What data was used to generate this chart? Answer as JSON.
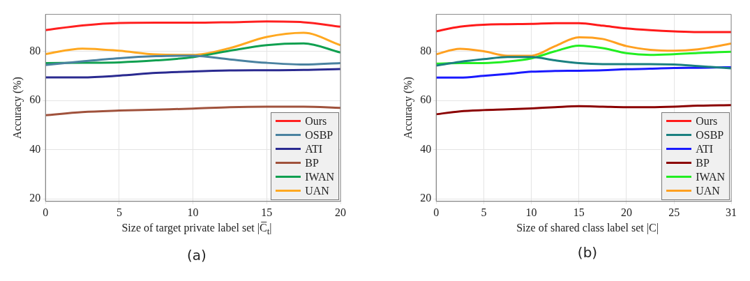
{
  "chart_data": [
    {
      "type": "line",
      "title": "(a)",
      "xlabel": "Size of target private label set |C̅$_{t}$|",
      "ylabel": "Accuracy (%)",
      "x": [
        0,
        2.5,
        5,
        7.5,
        10,
        12.5,
        15,
        17.5,
        20
      ],
      "xlim": [
        0,
        20
      ],
      "xticks": [
        0,
        5,
        10,
        15,
        20
      ],
      "ylim": [
        19,
        95
      ],
      "yticks": [
        20,
        40,
        60,
        80
      ],
      "grid": true,
      "legend": "bottom right",
      "marker": "none",
      "line_style": "solid",
      "series": [
        {
          "name": "Ours",
          "color": "#ff2020",
          "values": [
            88.6,
            90.5,
            91.5,
            91.6,
            91.6,
            91.8,
            92.1,
            91.8,
            90.0
          ]
        },
        {
          "name": "OSBP",
          "color": "#4a82a0",
          "values": [
            74.4,
            75.9,
            77.2,
            78.0,
            78.2,
            76.7,
            75.3,
            74.6,
            75.2
          ]
        },
        {
          "name": "ATI",
          "color": "#2a2a90",
          "values": [
            69.4,
            69.4,
            70.1,
            71.2,
            71.8,
            72.2,
            72.3,
            72.4,
            72.8
          ]
        },
        {
          "name": "BP",
          "color": "#a0523c",
          "values": [
            54.0,
            55.3,
            55.9,
            56.3,
            56.7,
            57.3,
            57.5,
            57.5,
            57.0
          ]
        },
        {
          "name": "IWAN",
          "color": "#10a050",
          "values": [
            75.2,
            75.3,
            75.5,
            76.3,
            77.6,
            80.2,
            82.5,
            83.2,
            79.5
          ]
        },
        {
          "name": "UAN",
          "color": "#ffa820",
          "values": [
            78.9,
            81.1,
            80.2,
            78.7,
            78.5,
            81.3,
            85.8,
            87.5,
            82.5
          ]
        }
      ]
    },
    {
      "type": "line",
      "title": "(b)",
      "xlabel": "Size of shared class label set |C|",
      "ylabel": "Accuracy (%)",
      "x": [
        0,
        2.5,
        5,
        7.5,
        10,
        12.5,
        15,
        17.5,
        20,
        22.5,
        25,
        27.5,
        31
      ],
      "xlim": [
        0,
        31
      ],
      "xticks": [
        0,
        5,
        10,
        15,
        20,
        25,
        31
      ],
      "ylim": [
        19,
        95
      ],
      "yticks": [
        20,
        40,
        60,
        80
      ],
      "grid": true,
      "legend": "bottom right",
      "marker": "none",
      "line_style": "solid",
      "series": [
        {
          "name": "Ours",
          "color": "#ff1a1a",
          "values": [
            88.1,
            90.0,
            90.8,
            91.0,
            91.1,
            91.4,
            91.4,
            90.4,
            89.3,
            88.6,
            88.1,
            87.8,
            87.8
          ]
        },
        {
          "name": "OSBP",
          "color": "#1a8080",
          "values": [
            74.2,
            75.7,
            76.8,
            77.7,
            77.7,
            76.3,
            75.2,
            74.8,
            74.8,
            74.8,
            74.6,
            74.0,
            73.1
          ]
        },
        {
          "name": "ATI",
          "color": "#1a1aff",
          "values": [
            69.3,
            69.3,
            70.0,
            70.8,
            71.7,
            72.0,
            72.1,
            72.3,
            72.7,
            72.9,
            73.2,
            73.3,
            73.5
          ]
        },
        {
          "name": "BP",
          "color": "#8b0000",
          "values": [
            54.4,
            55.6,
            56.1,
            56.4,
            56.8,
            57.3,
            57.7,
            57.5,
            57.3,
            57.3,
            57.5,
            57.9,
            58.1
          ]
        },
        {
          "name": "IWAN",
          "color": "#22ee22",
          "values": [
            75.0,
            75.2,
            75.2,
            75.8,
            77.1,
            80.0,
            82.3,
            81.3,
            79.2,
            78.5,
            78.8,
            79.3,
            79.8
          ]
        },
        {
          "name": "UAN",
          "color": "#ffa020",
          "values": [
            78.8,
            81.0,
            80.0,
            78.2,
            78.2,
            82.1,
            85.7,
            85.0,
            82.1,
            80.6,
            80.2,
            80.8,
            83.1
          ]
        }
      ]
    }
  ]
}
